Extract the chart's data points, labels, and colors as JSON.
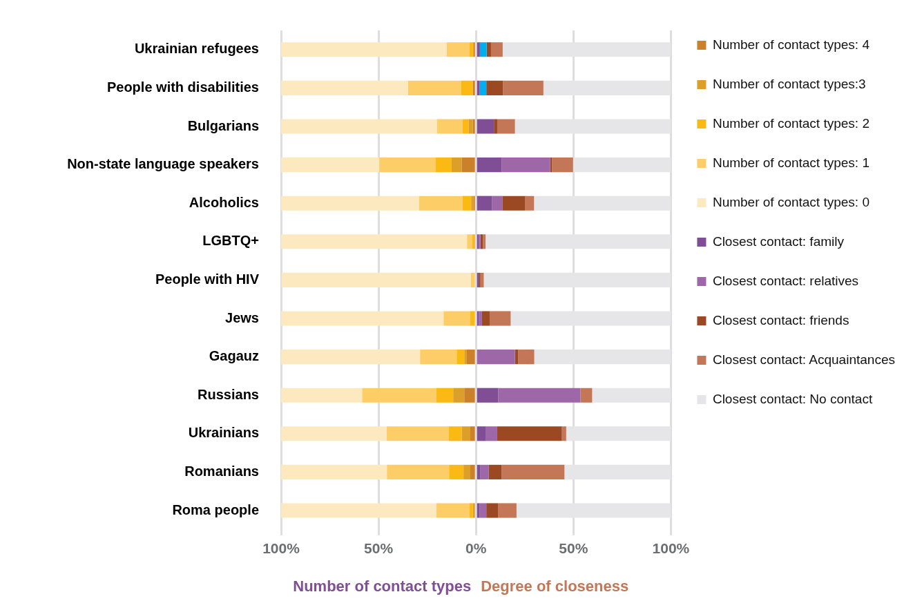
{
  "chart_data": {
    "type": "bar",
    "orientation": "horizontal",
    "stacked": true,
    "categories": [
      "Ukrainian refugees",
      "People with disabilities",
      "Bulgarians",
      "Non-state language speakers",
      "Alcoholics",
      "LGBTQ+",
      "People with HIV",
      "Jews",
      "Gagauz",
      "Russians",
      "Ukrainians",
      "Romanians",
      "Roma people"
    ],
    "series": [
      {
        "name": "Number of contact types: 4",
        "color": "#cb802a",
        "values": [
          -1.2,
          -1.6,
          -1.6,
          -7.3,
          -1.2,
          -0.7,
          null,
          0,
          -4.7,
          -6.0,
          -2.9,
          -2.9,
          -0.7
        ]
      },
      {
        "name": "Number of contact types:3",
        "color": "#dca02a",
        "values": [
          -0.3,
          0,
          -2.2,
          -5.2,
          -1.3,
          0,
          0,
          0,
          -1.3,
          -5.7,
          -4.4,
          -3.5,
          -0.9
        ]
      },
      {
        "name": "Number of contact types: 2",
        "color": "#fbb914",
        "values": [
          -1.8,
          -6.1,
          -3.1,
          -8.3,
          -4.4,
          -1.3,
          0,
          -2.9,
          -3.9,
          -8.7,
          -6.6,
          -7.4,
          -1.7
        ]
      },
      {
        "name": "Number of contact types: 1",
        "color": "#fdce68",
        "values": [
          -11.7,
          -27.1,
          -13.1,
          -28.8,
          -22.3,
          -2.6,
          -2.6,
          -13.7,
          -18.8,
          -38.0,
          -31.9,
          -31.9,
          -17.0
        ]
      },
      {
        "name": "Number of contact types: 0",
        "color": "#fde9c0",
        "values": [
          -85.0,
          -65.2,
          -80.0,
          -50.4,
          -70.8,
          -95.4,
          -97.1,
          -83.4,
          -71.3,
          -41.6,
          -54.2,
          -54.3,
          -79.7
        ]
      },
      {
        "name": "Closest contact: family",
        "color": "#7f4e94",
        "values": [
          2.0,
          1.9,
          9.2,
          13.1,
          8.3,
          1.4,
          1.4,
          1.4,
          0,
          11.4,
          4.9,
          2.3,
          1.9
        ]
      },
      {
        "color": "#00adef",
        "values": [
          3.5,
          3.4,
          0,
          0,
          0,
          0,
          0,
          0,
          0,
          0,
          0,
          0,
          0
        ]
      },
      {
        "name": "Closest contact: relatives",
        "color": "#9e67a8",
        "values": [
          0,
          0,
          0,
          25.0,
          5.2,
          0.9,
          0,
          1.7,
          20.0,
          42.2,
          6.0,
          4.3,
          3.4
        ]
      },
      {
        "name": "Closest contact: friends",
        "color": "#9a4922",
        "values": [
          2.2,
          8.6,
          1.7,
          0.9,
          11.6,
          1.3,
          0.9,
          3.9,
          1.7,
          0,
          33.2,
          6.5,
          6.0
        ]
      },
      {
        "name": "Closest contact: Acquaintances",
        "color": "#c47756",
        "values": [
          6.0,
          20.7,
          9.1,
          10.8,
          4.7,
          1.3,
          1.7,
          10.8,
          8.2,
          6.0,
          2.2,
          32.3,
          9.5
        ]
      },
      {
        "name": "Closest contact: No contact",
        "color": "#e6e6e8",
        "values": [
          86.3,
          65.4,
          80.0,
          50.2,
          70.2,
          95.1,
          96.0,
          82.2,
          70.1,
          40.4,
          53.7,
          54.6,
          79.2
        ]
      }
    ],
    "xlim": [
      -100,
      100
    ],
    "xticks": [
      {
        "value": -100,
        "label": "100%"
      },
      {
        "value": -50,
        "label": "50%"
      },
      {
        "value": 0,
        "label": "0%"
      },
      {
        "value": 50,
        "label": "50%"
      },
      {
        "value": 100,
        "label": "100%"
      }
    ],
    "grid": "x",
    "legend": "right",
    "marker": "square",
    "annotations": [
      "Number of contact types",
      "Degree of closeness"
    ]
  }
}
